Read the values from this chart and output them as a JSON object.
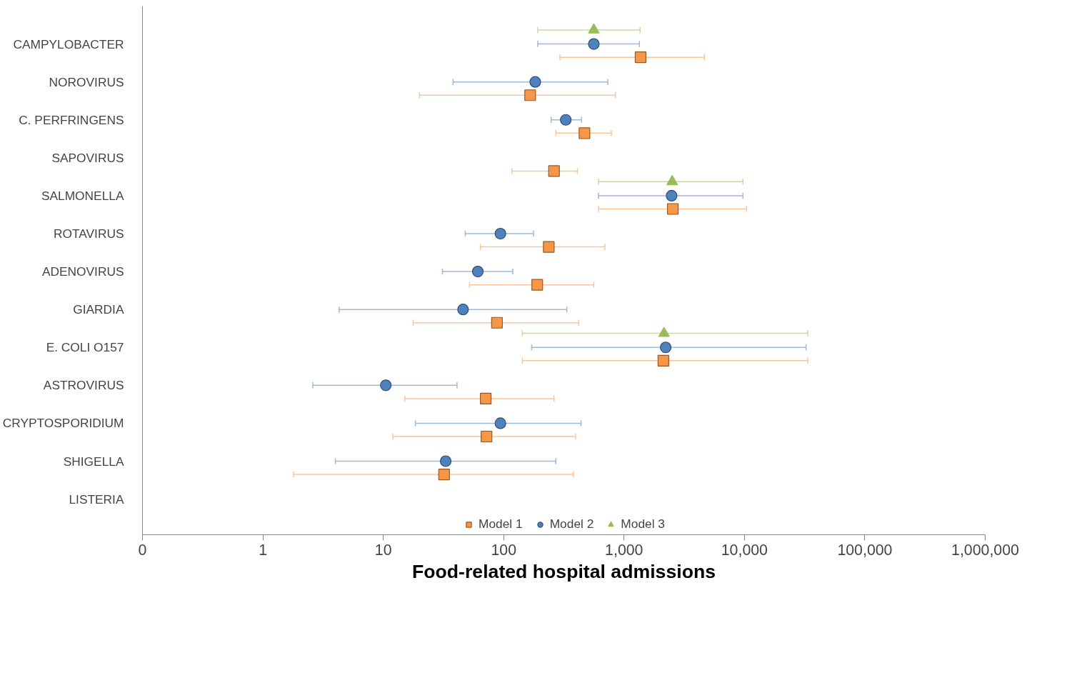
{
  "chart_data": {
    "type": "scatter",
    "orientation": "horizontal",
    "xlabel": "Food-related hospital admissions",
    "log": "x",
    "categories": [
      "CAMPYLOBACTER",
      "NOROVIRUS",
      "C. PERFRINGENS",
      "SAPOVIRUS",
      "SALMONELLA",
      "ROTAVIRUS",
      "ADENOVIRUS",
      "GIARDIA",
      "E. COLI O157",
      "ASTROVIRUS",
      "CRYPTOSPORIDIUM",
      "SHIGELLA",
      "LISTERIA"
    ],
    "xlim": [
      0.1,
      1000000
    ],
    "xticks": [
      {
        "value": 0.1,
        "label": "0"
      },
      1,
      10,
      100,
      {
        "value": 1000,
        "label": "1,000"
      },
      {
        "value": 10000,
        "label": "10,000"
      },
      {
        "value": 100000,
        "label": "100,000"
      },
      {
        "value": 1000000,
        "label": "1,000,000"
      }
    ],
    "grid": false,
    "legend": "bottom",
    "series": [
      {
        "name": "Model 1",
        "color": "#f79646",
        "marker": "square",
        "values": [
          1372,
          166,
          469,
          262,
          2540,
          237,
          190,
          88,
          2123,
          71,
          72,
          32,
          null
        ],
        "errors": [
          [
            293,
            4645
          ],
          [
            20,
            849
          ],
          [
            271,
            785
          ],
          [
            117,
            410
          ],
          [
            613,
            10400
          ],
          [
            64,
            693
          ],
          [
            52,
            561
          ],
          [
            17.7,
            419
          ],
          [
            143,
            33600
          ],
          [
            15.1,
            262
          ],
          [
            12,
            396
          ],
          [
            1.8,
            379
          ],
          null
        ]
      },
      {
        "name": "Model 2",
        "color": "#4f81bd",
        "marker": "circle",
        "values": [
          561,
          183,
          328,
          null,
          2483,
          94,
          61,
          46,
          2218,
          10.5,
          94,
          33,
          null
        ],
        "errors": [
          [
            192,
            1342
          ],
          [
            38,
            733
          ],
          [
            248,
            443
          ],
          null,
          [
            613,
            9710
          ],
          [
            48,
            177
          ],
          [
            31,
            119
          ],
          [
            4.3,
            335
          ],
          [
            171,
            32500
          ],
          [
            2.6,
            41
          ],
          [
            18.5,
            439
          ],
          [
            4,
            271
          ],
          null
        ]
      },
      {
        "name": "Model 3",
        "color": "#9bbb59",
        "marker": "triangle",
        "values": [
          561,
          null,
          null,
          null,
          2512,
          null,
          null,
          null,
          2148,
          null,
          null,
          null,
          null
        ],
        "errors": [
          [
            192,
            1358
          ],
          null,
          null,
          null,
          [
            613,
            9710
          ],
          null,
          null,
          null,
          [
            143,
            33600
          ],
          null,
          null,
          null,
          null
        ]
      }
    ]
  }
}
